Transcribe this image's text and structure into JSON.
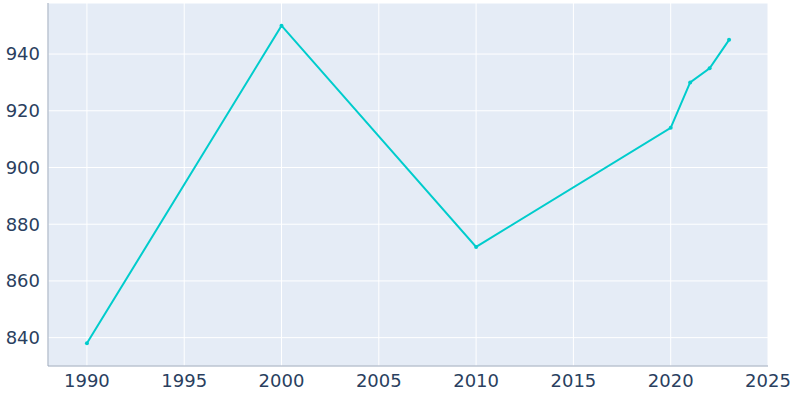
{
  "chart_data": {
    "type": "line",
    "x": [
      1990,
      2000,
      2010,
      2020,
      2021,
      2022,
      2023
    ],
    "values": [
      838,
      950,
      872,
      914,
      930,
      935,
      945
    ],
    "color": "#00cccc",
    "marker": "circle",
    "xlim": [
      1988,
      2025
    ],
    "xticks": [
      1990,
      1995,
      2000,
      2005,
      2010,
      2015,
      2020,
      2025
    ],
    "ylim": [
      830,
      958
    ],
    "yticks": [
      840,
      860,
      880,
      900,
      920,
      940
    ],
    "grid": true
  }
}
